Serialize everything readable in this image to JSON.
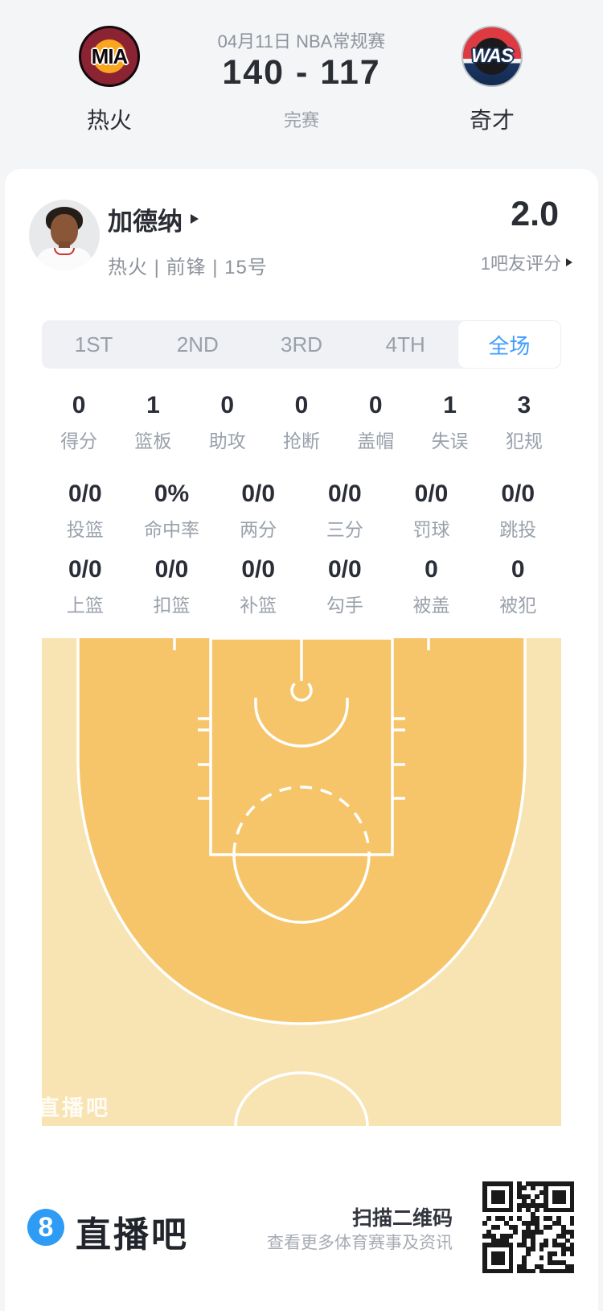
{
  "header": {
    "date_line": "04月11日 NBA常规赛",
    "score": "140 - 117",
    "status": "完赛",
    "home_team": {
      "abbr": "MIA",
      "name": "热火"
    },
    "away_team": {
      "abbr": "WAS",
      "name": "奇才"
    }
  },
  "player": {
    "name": "加德纳",
    "meta": "热火 | 前锋 | 15号",
    "rating": "2.0",
    "rating_label": "1吧友评分"
  },
  "tabs": [
    {
      "name": "tab-1st",
      "label": "1ST"
    },
    {
      "name": "tab-2nd",
      "label": "2ND"
    },
    {
      "name": "tab-3rd",
      "label": "3RD"
    },
    {
      "name": "tab-4th",
      "label": "4TH"
    },
    {
      "name": "tab-full-game",
      "label": "全场",
      "active": true
    }
  ],
  "stats": {
    "row1": [
      {
        "value": "0",
        "label": "得分"
      },
      {
        "value": "1",
        "label": "篮板"
      },
      {
        "value": "0",
        "label": "助攻"
      },
      {
        "value": "0",
        "label": "抢断"
      },
      {
        "value": "0",
        "label": "盖帽"
      },
      {
        "value": "1",
        "label": "失误"
      },
      {
        "value": "3",
        "label": "犯规"
      }
    ],
    "row2": [
      {
        "value": "0/0",
        "label": "投篮"
      },
      {
        "value": "0%",
        "label": "命中率"
      },
      {
        "value": "0/0",
        "label": "两分"
      },
      {
        "value": "0/0",
        "label": "三分"
      },
      {
        "value": "0/0",
        "label": "罚球"
      },
      {
        "value": "0/0",
        "label": "跳投"
      }
    ],
    "row3": [
      {
        "value": "0/0",
        "label": "上篮"
      },
      {
        "value": "0/0",
        "label": "扣篮"
      },
      {
        "value": "0/0",
        "label": "补篮"
      },
      {
        "value": "0/0",
        "label": "勾手"
      },
      {
        "value": "0",
        "label": "被盖"
      },
      {
        "value": "0",
        "label": "被犯"
      }
    ]
  },
  "court": {
    "watermark": "直播吧"
  },
  "footer": {
    "brand_badge": "8",
    "brand": "直播吧",
    "scan_title": "扫描二维码",
    "scan_subtitle": "查看更多体育赛事及资讯"
  },
  "colors": {
    "accent_blue": "#3f9cfc",
    "court_inner": "#f6c56a",
    "court_outer": "#f8e3b2",
    "mia_maroon": "#8b2332",
    "mia_orange": "#f9a51e",
    "was_red": "#de3a41",
    "was_navy": "#122a4e"
  }
}
